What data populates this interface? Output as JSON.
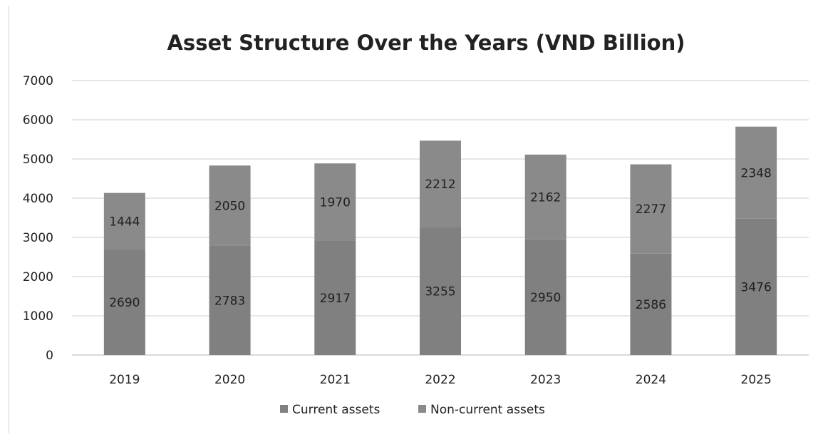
{
  "chart_data": {
    "type": "bar",
    "stacked": true,
    "title": "Asset Structure Over the Years (VND Billion)",
    "xlabel": "",
    "ylabel": "",
    "categories": [
      "2019",
      "2020",
      "2021",
      "2022",
      "2023",
      "2024",
      "2025"
    ],
    "series": [
      {
        "name": "Current assets",
        "values": [
          2690,
          2783,
          2917,
          3255,
          2950,
          2586,
          3476
        ],
        "color": "#808080"
      },
      {
        "name": "Non-current assets",
        "values": [
          1444,
          2050,
          1970,
          2212,
          2162,
          2277,
          2348
        ],
        "color": "#8a8a8a"
      }
    ],
    "ylim": [
      0,
      7000
    ],
    "yticks": [
      "0",
      "1000",
      "2000",
      "3000",
      "4000",
      "5000",
      "6000",
      "7000"
    ],
    "grid": true,
    "legend_position": "bottom"
  }
}
